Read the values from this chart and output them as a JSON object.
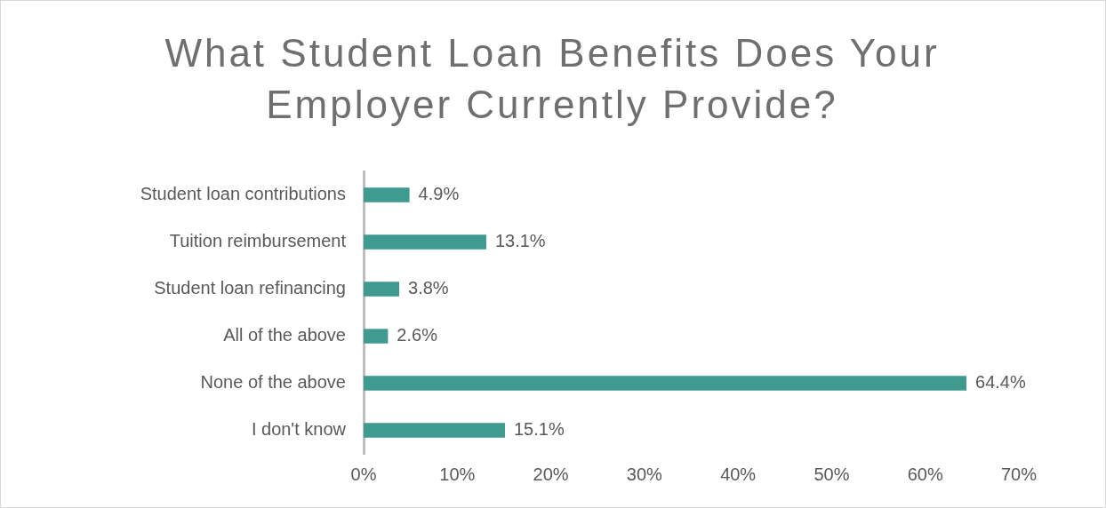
{
  "chart_data": {
    "type": "bar",
    "orientation": "horizontal",
    "title": "What Student Loan Benefits Does Your Employer Currently Provide?",
    "categories": [
      "Student loan contributions",
      "Tuition reimbursement",
      "Student loan refinancing",
      "All of the above",
      "None of the above",
      "I don't know"
    ],
    "values": [
      4.9,
      13.1,
      3.8,
      2.6,
      64.4,
      15.1
    ],
    "value_labels": [
      "4.9%",
      "13.1%",
      "3.8%",
      "2.6%",
      "64.4%",
      "15.1%"
    ],
    "color": "#3f9a90",
    "xlim": [
      0,
      70
    ],
    "xticks": [
      {
        "value": 0,
        "label": "0%"
      },
      {
        "value": 10,
        "label": "10%"
      },
      {
        "value": 20,
        "label": "20%"
      },
      {
        "value": 30,
        "label": "30%"
      },
      {
        "value": 40,
        "label": "40%"
      },
      {
        "value": 50,
        "label": "50%"
      },
      {
        "value": 60,
        "label": "60%"
      },
      {
        "value": 70,
        "label": "70%"
      }
    ],
    "grid": false,
    "legend": false
  }
}
